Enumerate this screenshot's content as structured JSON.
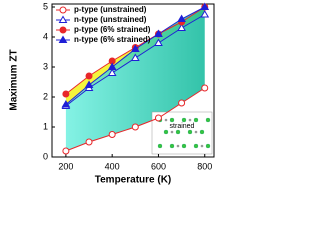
{
  "chart_data": {
    "type": "line",
    "xlabel": "Temperature (K)",
    "ylabel": "Maximum ZT",
    "xlim": [
      140,
      840
    ],
    "xticks": [
      200,
      400,
      600,
      800
    ],
    "ylim": [
      0,
      5.1
    ],
    "yticks": [
      0,
      1,
      2,
      3,
      4,
      5
    ],
    "x": [
      200,
      300,
      400,
      500,
      600,
      700,
      800
    ],
    "series": [
      {
        "name": "p-type (unstrained)",
        "color": "#e8262a",
        "marker": "circle",
        "filled": false,
        "values": [
          0.2,
          0.5,
          0.75,
          1.0,
          1.3,
          1.8,
          2.3
        ]
      },
      {
        "name": "n-type (unstrained)",
        "color": "#1f1fd6",
        "marker": "triangle",
        "filled": false,
        "values": [
          1.7,
          2.3,
          2.8,
          3.3,
          3.8,
          4.3,
          4.75
        ]
      },
      {
        "name": "p-type (6% strained)",
        "color": "#e8262a",
        "marker": "circle",
        "filled": true,
        "values": [
          2.1,
          2.7,
          3.2,
          3.65,
          4.1,
          4.5,
          5.0
        ]
      },
      {
        "name": "n-type (6% strained)",
        "color": "#1f1fd6",
        "marker": "triangle",
        "filled": true,
        "values": [
          1.75,
          2.4,
          3.0,
          3.6,
          4.1,
          4.6,
          5.0
        ]
      }
    ],
    "fills": [
      {
        "between": [
          2,
          1
        ],
        "color": "#f2f21a"
      },
      {
        "between": [
          3,
          0
        ],
        "color": "#2fd6b8"
      }
    ],
    "inset_label": "strained"
  }
}
